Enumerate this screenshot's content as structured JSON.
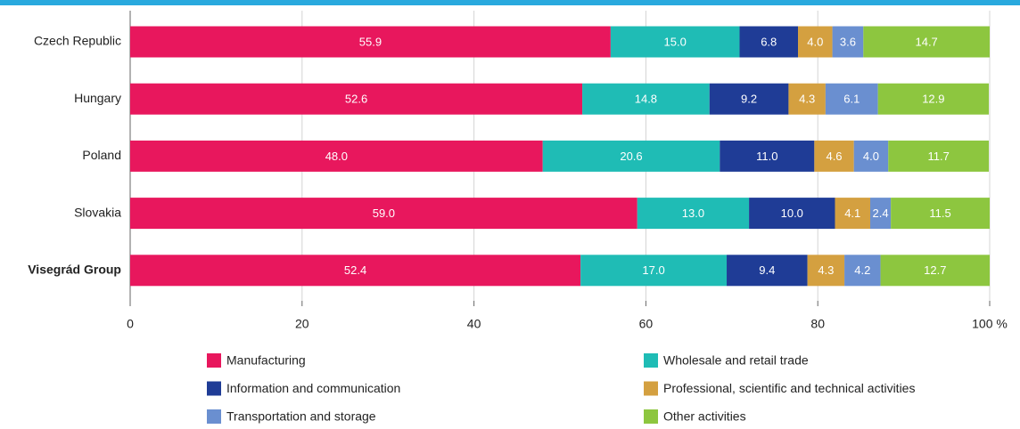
{
  "chart_data": {
    "type": "stacked-bar-horizontal",
    "categories": [
      "Czech Republic",
      "Hungary",
      "Poland",
      "Slovakia",
      "Visegrád Group"
    ],
    "series": [
      {
        "name": "Manufacturing",
        "color": "#e8175d",
        "values": [
          55.9,
          52.6,
          48.0,
          59.0,
          52.4
        ],
        "value_labels": [
          "55.9",
          "52.6",
          "48.0",
          "59.0",
          "52.4"
        ]
      },
      {
        "name": "Wholesale and retail trade",
        "color": "#1fbcb5",
        "values": [
          15.0,
          14.8,
          20.6,
          13.0,
          17.0
        ],
        "value_labels": [
          "15.0",
          "14.8",
          "20.6",
          "13.0",
          "17.0"
        ]
      },
      {
        "name": "Information and communication",
        "color": "#1f3c96",
        "values": [
          6.8,
          9.2,
          11.0,
          10.0,
          9.4
        ],
        "value_labels": [
          "6.8",
          "9.2",
          "11.0",
          "10.0",
          "9.4"
        ]
      },
      {
        "name": "Professional, scientific and technical activities",
        "color": "#d4a040",
        "values": [
          4.0,
          4.3,
          4.6,
          4.1,
          4.3
        ],
        "value_labels": [
          "4.0",
          "4.3",
          "4.6",
          "4.1",
          "4.3"
        ]
      },
      {
        "name": "Transportation and storage",
        "color": "#6a8fd0",
        "values": [
          3.6,
          6.1,
          4.0,
          2.4,
          4.2
        ],
        "value_labels": [
          "3.6",
          "6.1",
          "4.0",
          "2.4",
          "4.2"
        ]
      },
      {
        "name": "Other activities",
        "color": "#8dc63f",
        "values": [
          14.7,
          12.9,
          11.7,
          11.5,
          12.7
        ],
        "value_labels": [
          "14.7",
          "12.9",
          "11.7",
          "11.5",
          "12.7"
        ]
      }
    ],
    "xlim": [
      0,
      100
    ],
    "xticks": [
      0,
      20,
      40,
      60,
      80,
      {
        "value": 100,
        "label": "100 %"
      }
    ],
    "grid": true
  }
}
